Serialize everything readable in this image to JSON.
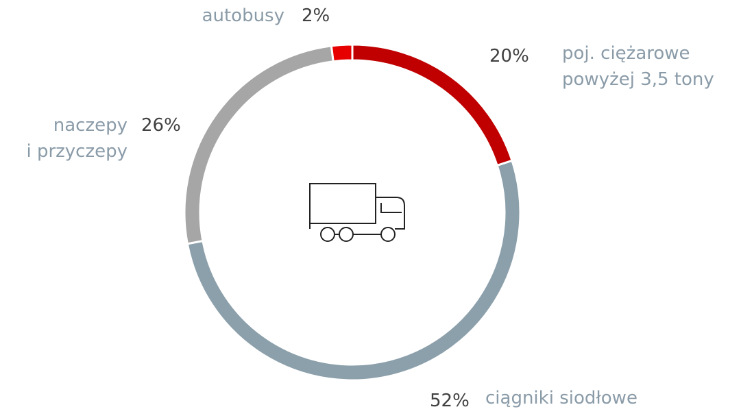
{
  "chart_data": {
    "type": "donut",
    "categories": [
      "poj. ciężarowe\npowyżej 3,5 tony",
      "ciągniki siodłowe",
      "naczepy\ni przyczepy",
      "autobusy"
    ],
    "values": [
      20,
      52,
      26,
      2
    ],
    "value_labels": [
      "20%",
      "52%",
      "26%",
      "2%"
    ],
    "colors": [
      "#c00000",
      "#8ca0ab",
      "#a6a6a6",
      "#e60000"
    ]
  }
}
